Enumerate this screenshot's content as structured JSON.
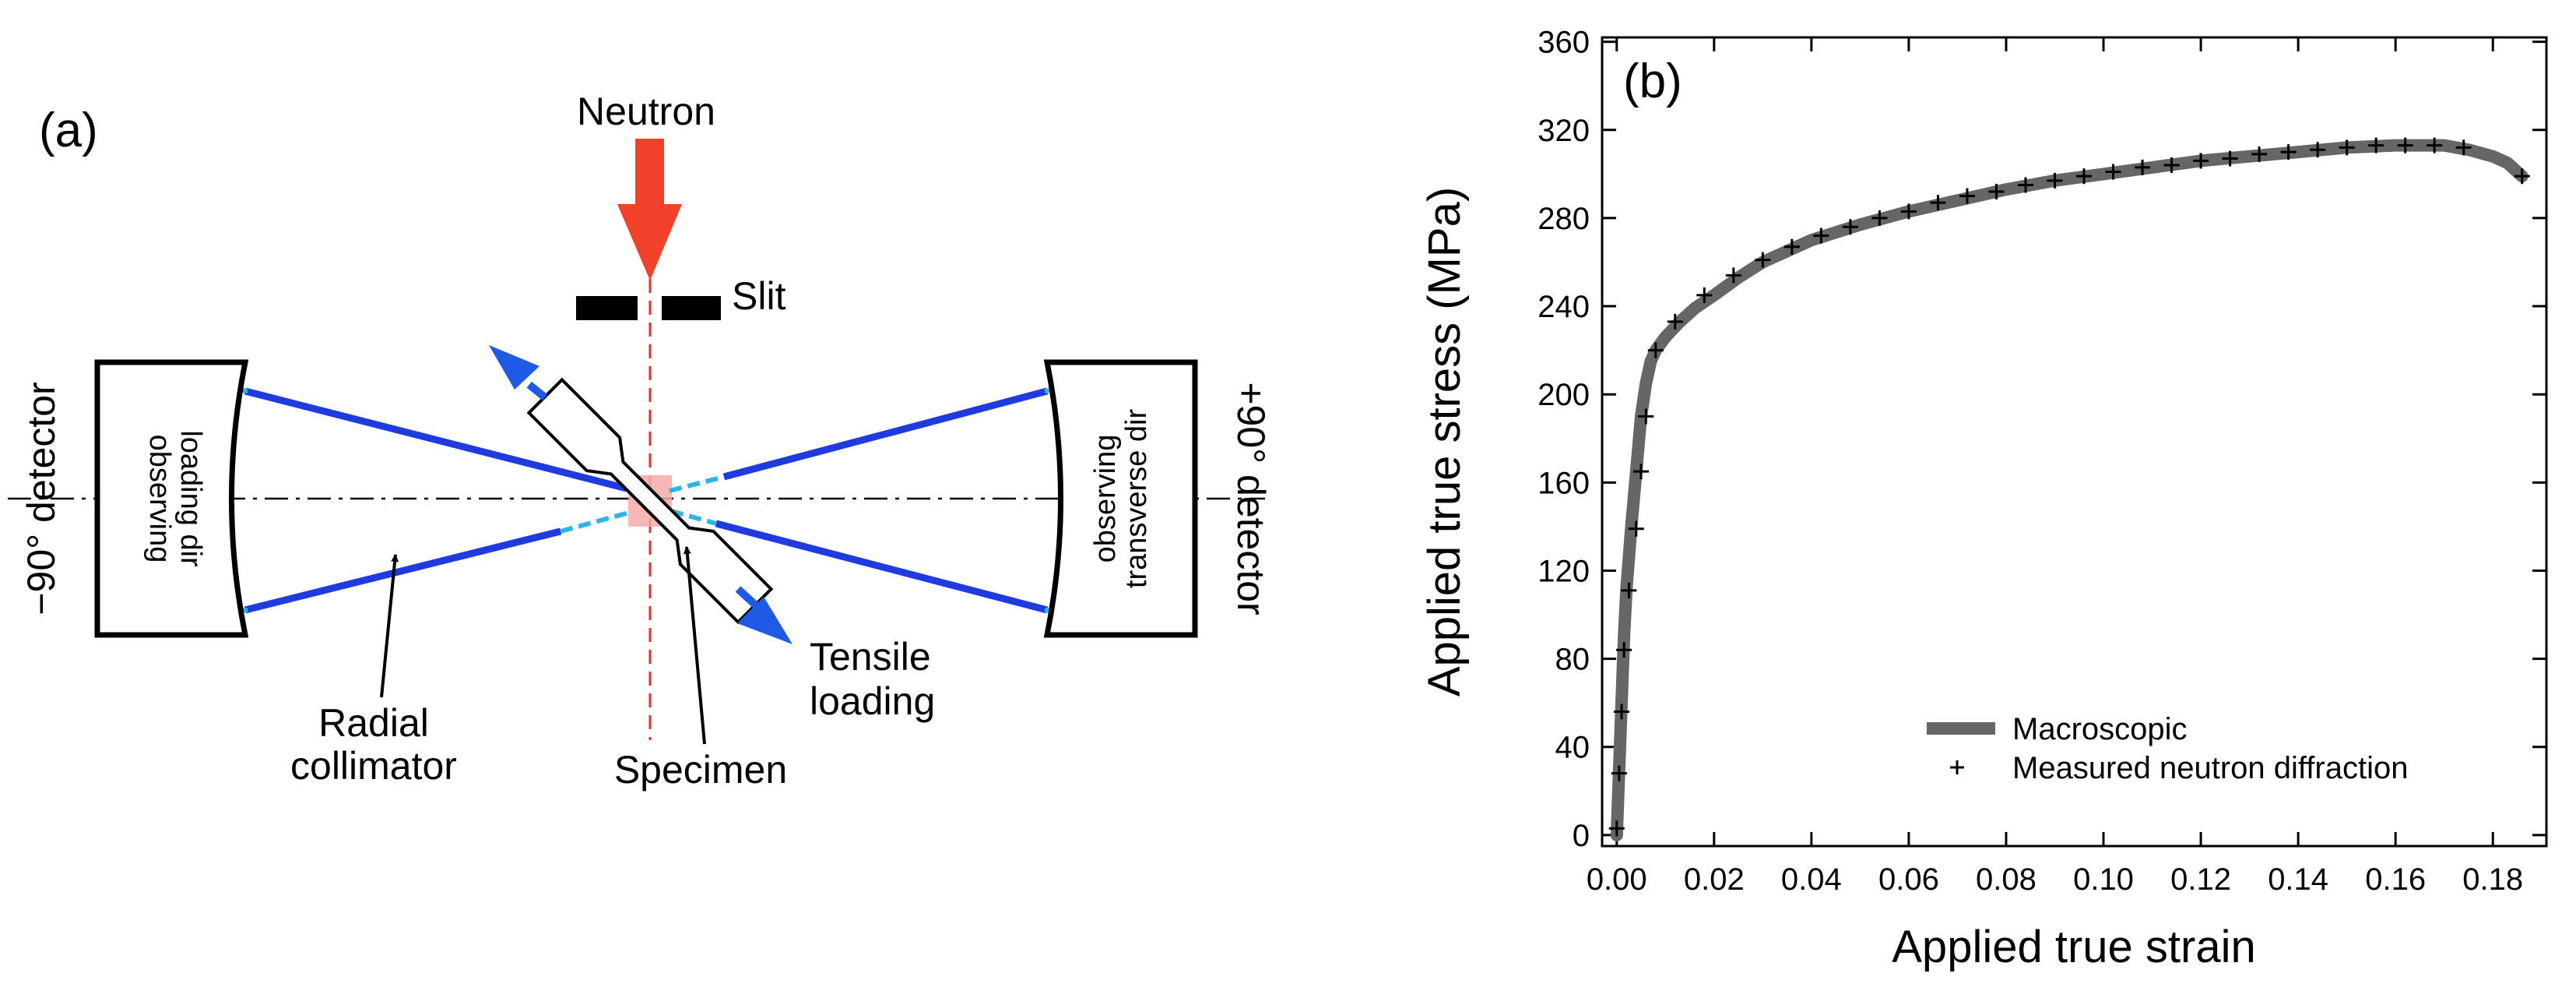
{
  "panel_a": {
    "label": "(a)",
    "neutron_label": "Neutron",
    "slit_label": "Slit",
    "left_detector_label": "−90° detector",
    "right_detector_label": "+90° detector",
    "left_box_line1": "observing",
    "left_box_line2": "loading dir",
    "right_box_line1": "observing",
    "right_box_line2": "transverse dir",
    "radial_line1": "Radial",
    "radial_line2": "collimator",
    "specimen_label": "Specimen",
    "tensile_line1": "Tensile",
    "tensile_line2": "loading",
    "colors": {
      "neutron_arrow": "#f2412b",
      "collimator": "#1f3be0",
      "loading_arrow": "#1f5ae6",
      "sample_volume": "#f4aaa9"
    }
  },
  "chart_data": {
    "type": "line",
    "panel_label": "(b)",
    "xlabel": "Applied true strain",
    "ylabel": "Applied true stress (MPa)",
    "xlim": [
      -0.003,
      0.191
    ],
    "ylim": [
      -5,
      362
    ],
    "x_ticks": [
      0.0,
      0.02,
      0.04,
      0.06,
      0.08,
      0.1,
      0.12,
      0.14,
      0.16,
      0.18
    ],
    "x_tick_labels": [
      "0.00",
      "0.02",
      "0.04",
      "0.06",
      "0.08",
      "0.10",
      "0.12",
      "0.14",
      "0.16",
      "0.18"
    ],
    "y_ticks": [
      0,
      40,
      80,
      120,
      160,
      200,
      240,
      280,
      320,
      360
    ],
    "y_tick_labels": [
      "0",
      "40",
      "80",
      "120",
      "160",
      "200",
      "240",
      "280",
      "320",
      "360"
    ],
    "legend_position": "bottom-right",
    "series": [
      {
        "name": "Macroscopic",
        "style": "thick-line",
        "color": "#666666",
        "x": [
          0.0,
          0.0005,
          0.001,
          0.0015,
          0.002,
          0.003,
          0.004,
          0.005,
          0.006,
          0.007,
          0.008,
          0.01,
          0.013,
          0.016,
          0.02,
          0.025,
          0.03,
          0.04,
          0.05,
          0.06,
          0.07,
          0.08,
          0.09,
          0.1,
          0.11,
          0.12,
          0.13,
          0.14,
          0.15,
          0.16,
          0.165,
          0.17,
          0.175,
          0.18,
          0.183,
          0.186
        ],
        "y": [
          0,
          30,
          60,
          90,
          112,
          140,
          165,
          190,
          205,
          215,
          220,
          226,
          233,
          239,
          245,
          253,
          260,
          270,
          277,
          283,
          288,
          293,
          297,
          300,
          303,
          306,
          308,
          310,
          312,
          313,
          313,
          313,
          311,
          308,
          305,
          299
        ]
      },
      {
        "name": "Measured neutron diffraction",
        "style": "plus-marker",
        "color": "#000000",
        "x": [
          0.0,
          0.0005,
          0.001,
          0.0015,
          0.0025,
          0.004,
          0.005,
          0.006,
          0.008,
          0.012,
          0.018,
          0.024,
          0.03,
          0.036,
          0.042,
          0.048,
          0.054,
          0.06,
          0.066,
          0.072,
          0.078,
          0.084,
          0.09,
          0.096,
          0.102,
          0.108,
          0.114,
          0.12,
          0.126,
          0.132,
          0.138,
          0.144,
          0.15,
          0.156,
          0.162,
          0.168,
          0.174,
          0.186
        ],
        "y": [
          3,
          28,
          56,
          84,
          111,
          139,
          165,
          190,
          220,
          233,
          245,
          254,
          261,
          267,
          272,
          276,
          280,
          283,
          287,
          290,
          292,
          295,
          297,
          299,
          301,
          303,
          304,
          306,
          307,
          309,
          310,
          311,
          312,
          313,
          313,
          313,
          312,
          299
        ]
      }
    ]
  }
}
